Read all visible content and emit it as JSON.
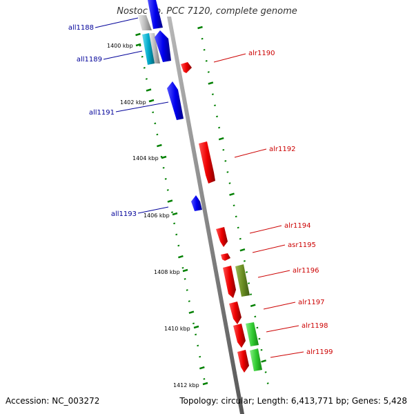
{
  "title": "Nostoc sp. PCC 7120, complete genome",
  "footer": {
    "accession": "Accession: NC_003272",
    "summary": "Topology: circular; Length: 6,413,771 bp; Genes: 5,428"
  },
  "colors": {
    "axis": "#888888",
    "ticks": "#008000",
    "minus_strand_label": "#000099",
    "plus_strand_label": "#cc0000",
    "blue_gene": "#0000ee",
    "red_gene": "#ee0000",
    "cyan_gene": "#00bbcc",
    "olive_gene": "#6b8e23",
    "green_gene": "#33cc33",
    "grey_gene": "#bbbbbb"
  },
  "scale_labels": [
    "1400 kbp",
    "1402 kbp",
    "1404 kbp",
    "1406 kbp",
    "1408 kbp",
    "1410 kbp",
    "1412 kbp"
  ],
  "genes": [
    {
      "name": "all1188",
      "side": "left"
    },
    {
      "name": "all1189",
      "side": "left"
    },
    {
      "name": "alr1190",
      "side": "right"
    },
    {
      "name": "all1191",
      "side": "left"
    },
    {
      "name": "alr1192",
      "side": "right"
    },
    {
      "name": "all1193",
      "side": "left"
    },
    {
      "name": "alr1194",
      "side": "right"
    },
    {
      "name": "asr1195",
      "side": "right"
    },
    {
      "name": "alr1196",
      "side": "right"
    },
    {
      "name": "alr1197",
      "side": "right"
    },
    {
      "name": "alr1198",
      "side": "right"
    },
    {
      "name": "alr1199",
      "side": "right"
    }
  ]
}
